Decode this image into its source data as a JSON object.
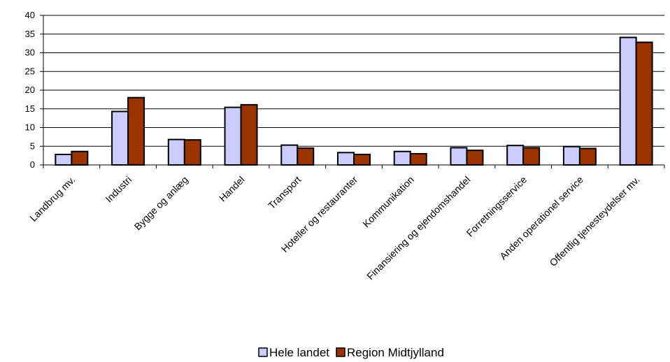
{
  "chart_data": {
    "type": "bar",
    "categories": [
      "Landbrug mv.",
      "Industri",
      "Bygge og anlæg",
      "Handel",
      "Transport",
      "Hoteller og restauranter",
      "Kommunikation",
      "Finansiering og ejendomshandel",
      "Forretningsservice",
      "Anden operationel service",
      "Offentlig tjenesteydelser mv."
    ],
    "series": [
      {
        "name": "Hele landet",
        "color": "#ccccff",
        "values": [
          2.8,
          14.3,
          6.8,
          15.4,
          5.3,
          3.3,
          3.6,
          4.6,
          5.2,
          4.9,
          34.1
        ]
      },
      {
        "name": "Region Midtjylland",
        "color": "#993300",
        "values": [
          3.6,
          18.0,
          6.7,
          16.1,
          4.5,
          2.8,
          3.0,
          3.9,
          4.6,
          4.4,
          32.8
        ]
      }
    ],
    "yticks": [
      "0",
      "5",
      "10",
      "15",
      "20",
      "25",
      "30",
      "35",
      "40"
    ],
    "ylim": [
      0,
      40
    ],
    "grid": true,
    "legend_position": "bottom"
  }
}
